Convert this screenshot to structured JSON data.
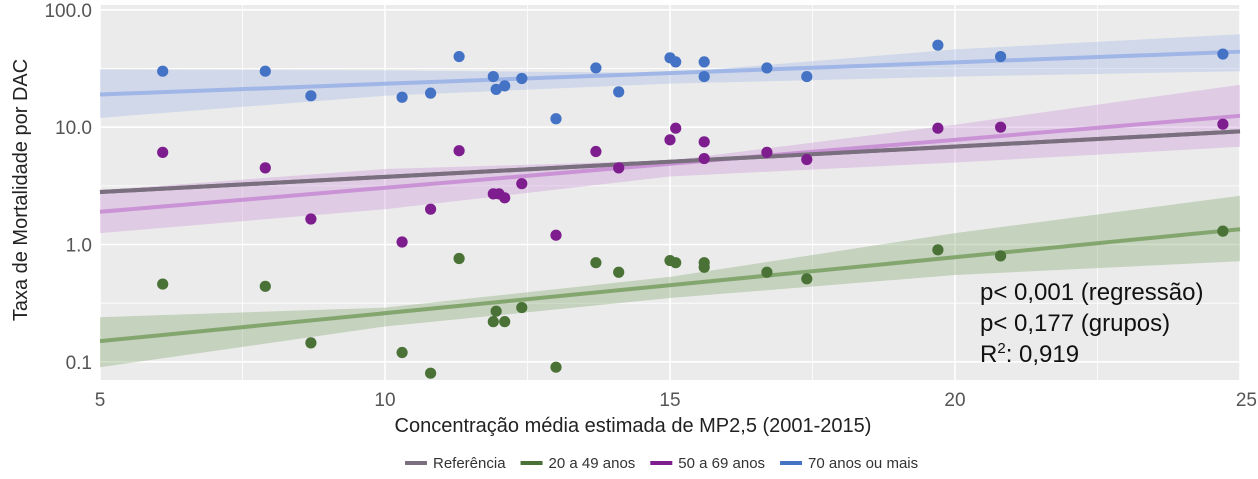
{
  "chart_data": {
    "type": "scatter",
    "xlabel": "Concentração média estimada de MP2,5 (2001-2015)",
    "ylabel": "Taxa de Mortalidade por DAC",
    "xlim": [
      5,
      25
    ],
    "ylim": [
      0.07,
      110
    ],
    "y_scale": "log",
    "x_ticks": [
      "5",
      "10",
      "15",
      "20",
      "25"
    ],
    "y_ticks": [
      "0.1",
      "1.0",
      "10.0",
      "100.0"
    ],
    "grid": true,
    "legend_position": "bottom",
    "annotations": {
      "line1": "p< 0,001 (regressão)",
      "line2": "p< 0,177 (grupos)",
      "r2_label": "R",
      "r2_sup": "2",
      "r2_value": ": 0,919"
    },
    "series": [
      {
        "name": "Referência",
        "color": "#7a6f7e",
        "fit": {
          "x0": 5,
          "y0": 2.8,
          "x1": 25,
          "y1": 9.2
        },
        "points": []
      },
      {
        "name": "20 a 49 anos",
        "color": "#4a7236",
        "band_color": "#7fa36a",
        "fit": {
          "x0": 5,
          "y0": 0.15,
          "x1": 25,
          "y1": 1.35
        },
        "band_lo": [
          0.09,
          0.2,
          0.35,
          0.55,
          0.72
        ],
        "band_hi": [
          0.24,
          0.29,
          0.53,
          1.25,
          2.6
        ],
        "points": [
          [
            6.1,
            0.46
          ],
          [
            7.9,
            0.44
          ],
          [
            8.7,
            0.145
          ],
          [
            10.3,
            0.12
          ],
          [
            10.8,
            0.08
          ],
          [
            11.3,
            0.76
          ],
          [
            11.9,
            0.22
          ],
          [
            11.95,
            0.27
          ],
          [
            12.1,
            0.22
          ],
          [
            12.4,
            0.29
          ],
          [
            13.0,
            0.09
          ],
          [
            13.7,
            0.7
          ],
          [
            14.1,
            0.58
          ],
          [
            15.0,
            0.73
          ],
          [
            15.1,
            0.7
          ],
          [
            15.6,
            0.7
          ],
          [
            15.6,
            0.64
          ],
          [
            16.7,
            0.58
          ],
          [
            17.4,
            0.51
          ],
          [
            19.7,
            0.9
          ],
          [
            20.8,
            0.8
          ],
          [
            24.7,
            1.3
          ]
        ]
      },
      {
        "name": "50 a 69 anos",
        "color": "#7d1d8e",
        "band_color": "#c88fd4",
        "fit": {
          "x0": 5,
          "y0": 1.9,
          "x1": 25,
          "y1": 12.5
        },
        "band_lo": [
          1.25,
          2.0,
          3.8,
          5.0,
          6.8
        ],
        "band_hi": [
          2.9,
          4.4,
          5.2,
          10.5,
          23.0
        ],
        "points": [
          [
            6.1,
            6.1
          ],
          [
            7.9,
            4.5
          ],
          [
            8.7,
            1.65
          ],
          [
            10.3,
            1.05
          ],
          [
            10.8,
            2.0
          ],
          [
            11.3,
            6.3
          ],
          [
            11.9,
            2.7
          ],
          [
            12.0,
            2.7
          ],
          [
            12.1,
            2.5
          ],
          [
            12.4,
            3.3
          ],
          [
            13.0,
            1.2
          ],
          [
            13.7,
            6.2
          ],
          [
            14.1,
            4.5
          ],
          [
            15.0,
            7.8
          ],
          [
            15.1,
            9.8
          ],
          [
            15.6,
            7.5
          ],
          [
            15.6,
            5.4
          ],
          [
            16.7,
            6.1
          ],
          [
            17.4,
            5.3
          ],
          [
            19.7,
            9.8
          ],
          [
            20.8,
            10.0
          ],
          [
            24.7,
            10.6
          ]
        ]
      },
      {
        "name": "70 anos ou mais",
        "color": "#4472c4",
        "band_color": "#9db4e6",
        "fit": {
          "x0": 5,
          "y0": 19,
          "x1": 25,
          "y1": 44
        },
        "band_lo": [
          12.0,
          18.5,
          23.5,
          27.0,
          30.0
        ],
        "band_hi": [
          31.0,
          30.5,
          29.0,
          46.0,
          62.0
        ],
        "points": [
          [
            6.1,
            30.0
          ],
          [
            7.9,
            30.0
          ],
          [
            8.7,
            18.5
          ],
          [
            10.3,
            18.0
          ],
          [
            10.8,
            19.5
          ],
          [
            11.3,
            40.0
          ],
          [
            11.9,
            27.0
          ],
          [
            11.95,
            21.0
          ],
          [
            12.1,
            22.5
          ],
          [
            12.4,
            26.0
          ],
          [
            13.0,
            11.8
          ],
          [
            13.7,
            32.0
          ],
          [
            14.1,
            20.0
          ],
          [
            15.0,
            39.0
          ],
          [
            15.1,
            36.0
          ],
          [
            15.6,
            36.0
          ],
          [
            15.6,
            27.0
          ],
          [
            16.7,
            32.0
          ],
          [
            17.4,
            27.0
          ],
          [
            19.7,
            50.0
          ],
          [
            20.8,
            40.0
          ],
          [
            24.7,
            42.0
          ]
        ]
      }
    ]
  }
}
